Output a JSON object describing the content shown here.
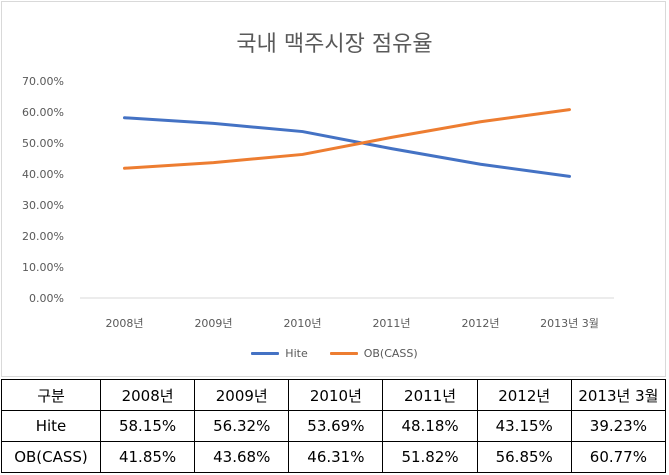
{
  "chart_data": {
    "type": "line",
    "title": "국내 맥주시장 점유율",
    "categories": [
      "2008년",
      "2009년",
      "2010년",
      "2011년",
      "2012년",
      "2013년 3월"
    ],
    "series": [
      {
        "name": "Hite",
        "color": "#4472C4",
        "values": [
          58.15,
          56.32,
          53.69,
          48.18,
          43.15,
          39.23
        ]
      },
      {
        "name": "OB(CASS)",
        "color": "#ED7D31",
        "values": [
          41.85,
          43.68,
          46.31,
          51.82,
          56.85,
          60.77
        ]
      }
    ],
    "ylim": [
      0,
      70
    ],
    "yticks": [
      "0.00%",
      "10.00%",
      "20.00%",
      "30.00%",
      "40.00%",
      "50.00%",
      "60.00%",
      "70.00%"
    ],
    "grid": false,
    "legend": "bottom"
  },
  "table": {
    "header": [
      "구분",
      "2008년",
      "2009년",
      "2010년",
      "2011년",
      "2012년",
      "2013년 3월"
    ],
    "rows": [
      [
        "Hite",
        "58.15%",
        "56.32%",
        "53.69%",
        "48.18%",
        "43.15%",
        "39.23%"
      ],
      [
        "OB(CASS)",
        "41.85%",
        "43.68%",
        "46.31%",
        "51.82%",
        "56.85%",
        "60.77%"
      ]
    ]
  }
}
